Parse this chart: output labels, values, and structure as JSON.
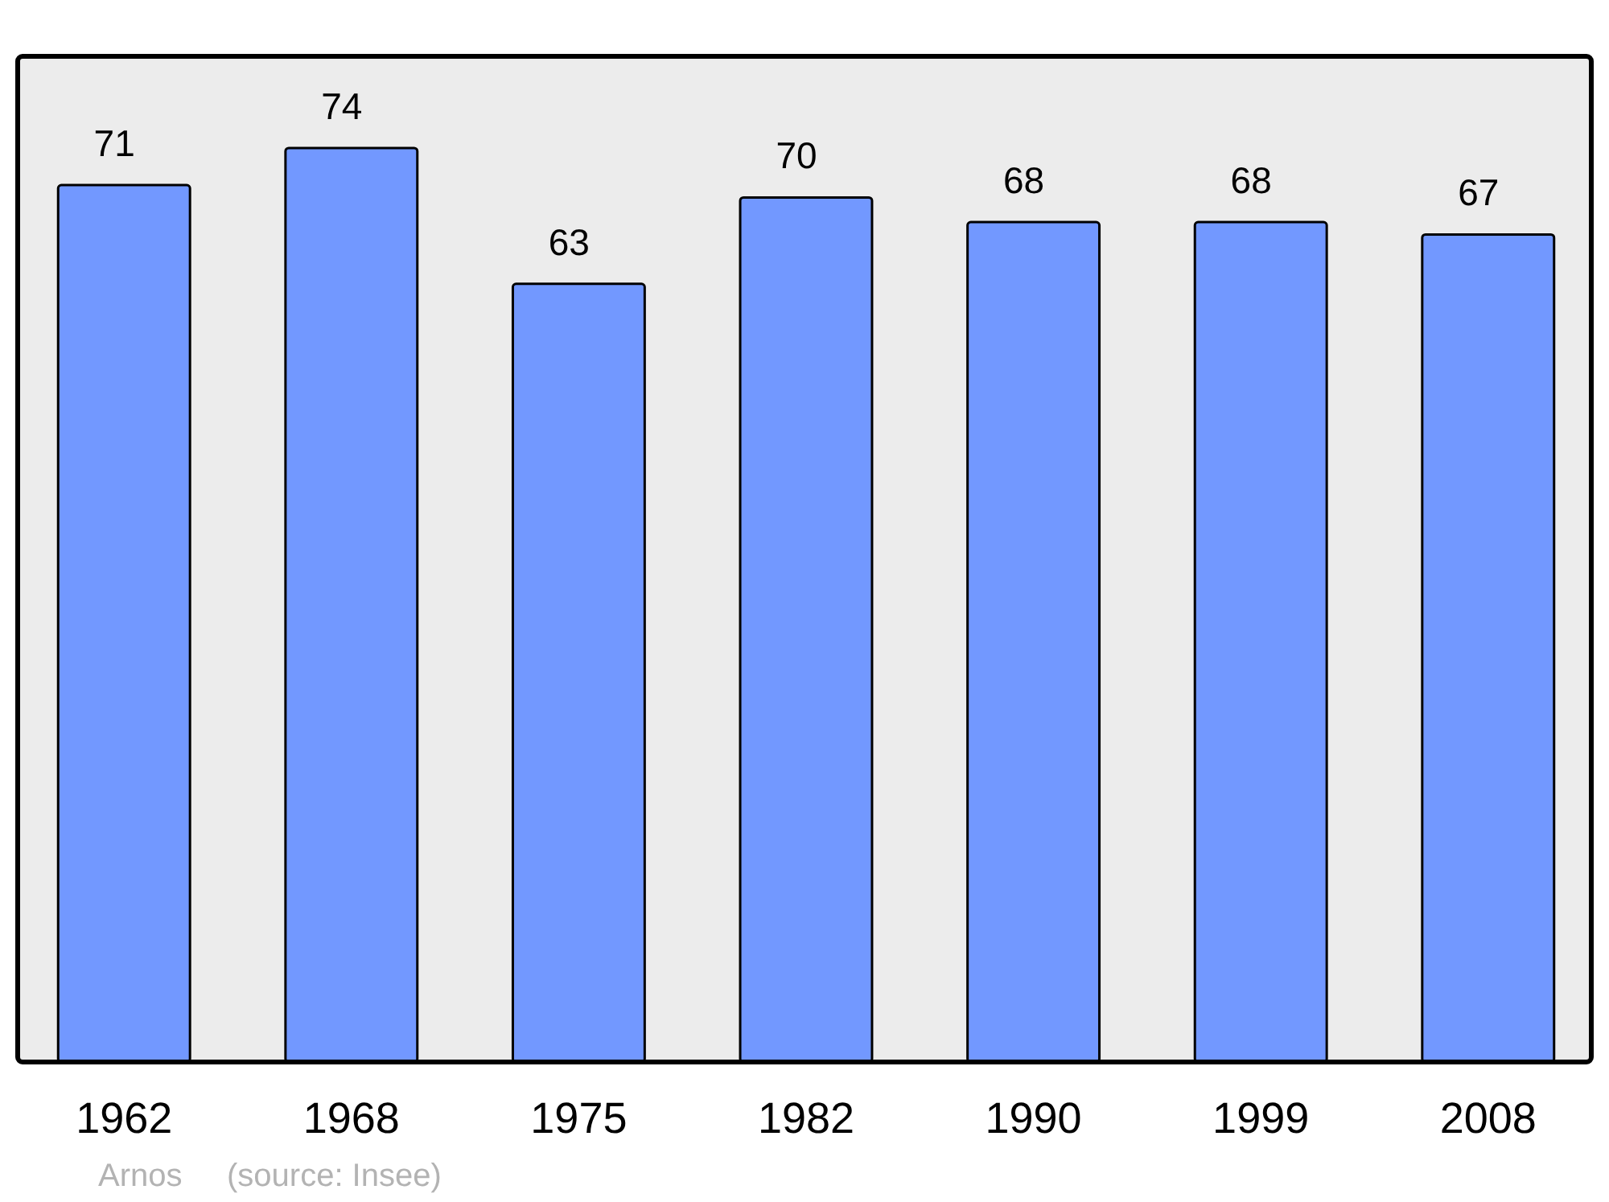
{
  "chart_data": {
    "type": "bar",
    "categories": [
      "1962",
      "1968",
      "1975",
      "1982",
      "1990",
      "1999",
      "2008"
    ],
    "values": [
      71,
      74,
      63,
      70,
      68,
      68,
      67
    ],
    "color": "#7298ff",
    "data_labels": true,
    "annotations": [
      "Arnos",
      "(source: Insee)"
    ]
  }
}
